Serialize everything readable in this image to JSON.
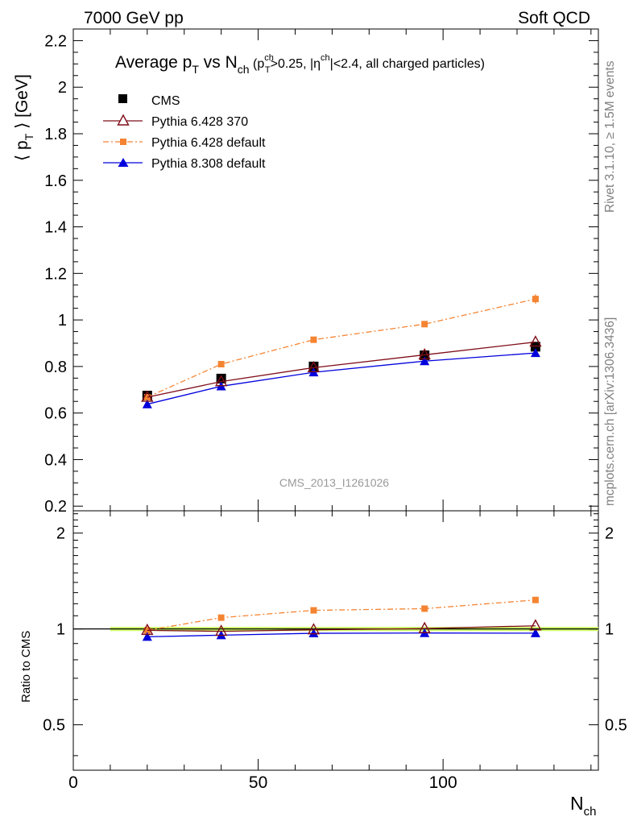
{
  "header": {
    "left": "7000 GeV pp",
    "right": "Soft QCD"
  },
  "side_labels": {
    "rivet": "Rivet 3.1.10, ≥ 1.5M events",
    "mcplots": "mcplots.cern.ch [arXiv:1306.3436]"
  },
  "watermark": "CMS_2013_I1261026",
  "chart_data": [
    {
      "type": "line",
      "panel": "main",
      "title": {
        "main": "Average p",
        "main_sub": "T",
        "vs": " vs N",
        "vs_sub": "ch",
        "cond_open": " (p",
        "cond_sup": "ch",
        "cond_sub": "T",
        "cond_mid": ">0.25, |η",
        "cond_sup2": "ch",
        "cond_end": "|<2.4, all charged particles)"
      },
      "ylabel": {
        "open": "⟨ p",
        "sub": "T",
        "close": " ⟩ [GeV]"
      },
      "xlim": [
        0,
        142
      ],
      "ylim": [
        0.18,
        2.25
      ],
      "yticks_major": [
        0.2,
        0.4,
        0.6,
        0.8,
        1.0,
        1.2,
        1.4,
        1.6,
        1.8,
        2.0,
        2.2
      ],
      "ytick_labels": [
        "0.2",
        "0.4",
        "0.6",
        "0.8",
        "1",
        "1.2",
        "1.4",
        "1.6",
        "1.8",
        "2",
        "2.2"
      ],
      "legend_position": "top-left",
      "series": [
        {
          "name": "CMS",
          "color": "#000000",
          "marker": "square",
          "x": [
            20,
            40,
            65,
            95,
            125
          ],
          "y": [
            0.675,
            0.748,
            0.8,
            0.848,
            0.885
          ]
        },
        {
          "name": "Pythia 6.428 370",
          "color": "#7f0e19",
          "marker": "triangle-open",
          "line": "solid",
          "x": [
            20,
            40,
            65,
            95,
            125
          ],
          "y": [
            0.668,
            0.735,
            0.795,
            0.85,
            0.905
          ]
        },
        {
          "name": "Pythia 6.428 default",
          "color": "#f48432",
          "marker": "square-small",
          "line": "dashdot",
          "x": [
            20,
            40,
            65,
            95,
            125
          ],
          "y": [
            0.668,
            0.81,
            0.915,
            0.982,
            1.09
          ]
        },
        {
          "name": "Pythia 8.308 default",
          "color": "#0000dd",
          "marker": "triangle-filled",
          "line": "solid",
          "x": [
            20,
            40,
            65,
            95,
            125
          ],
          "y": [
            0.638,
            0.715,
            0.775,
            0.823,
            0.858
          ]
        }
      ]
    },
    {
      "type": "line",
      "panel": "ratio",
      "ylabel": "Ratio to CMS",
      "xlabel": {
        "main": "N",
        "sub": "ch"
      },
      "xlim": [
        0,
        142
      ],
      "xticks_major": [
        0,
        50,
        100
      ],
      "xtick_labels": [
        "0",
        "50",
        "100"
      ],
      "ylim": [
        0.36,
        2.35
      ],
      "ytick_labels_left": [
        "0.5",
        "1",
        "2"
      ],
      "ytick_labels_right": [
        "0.5",
        "1",
        "2"
      ],
      "yticks_major": [
        0.5,
        1,
        2
      ],
      "band": {
        "x": [
          10,
          142
        ],
        "low": 0.985,
        "high": 1.015,
        "color": "#ccff66"
      },
      "series": [
        {
          "name": "Pythia 6.428 370",
          "color": "#7f0e19",
          "marker": "triangle-open",
          "line": "solid",
          "x": [
            20,
            40,
            65,
            95,
            125
          ],
          "y": [
            0.99,
            0.983,
            0.994,
            1.003,
            1.023
          ]
        },
        {
          "name": "Pythia 6.428 default",
          "color": "#f48432",
          "marker": "square-small",
          "line": "dashdot",
          "x": [
            20,
            40,
            65,
            95,
            125
          ],
          "y": [
            0.99,
            1.085,
            1.144,
            1.158,
            1.233
          ]
        },
        {
          "name": "Pythia 8.308 default",
          "color": "#0000dd",
          "marker": "triangle-filled",
          "line": "solid",
          "x": [
            20,
            40,
            65,
            95,
            125
          ],
          "y": [
            0.945,
            0.956,
            0.969,
            0.971,
            0.97
          ]
        }
      ]
    }
  ]
}
